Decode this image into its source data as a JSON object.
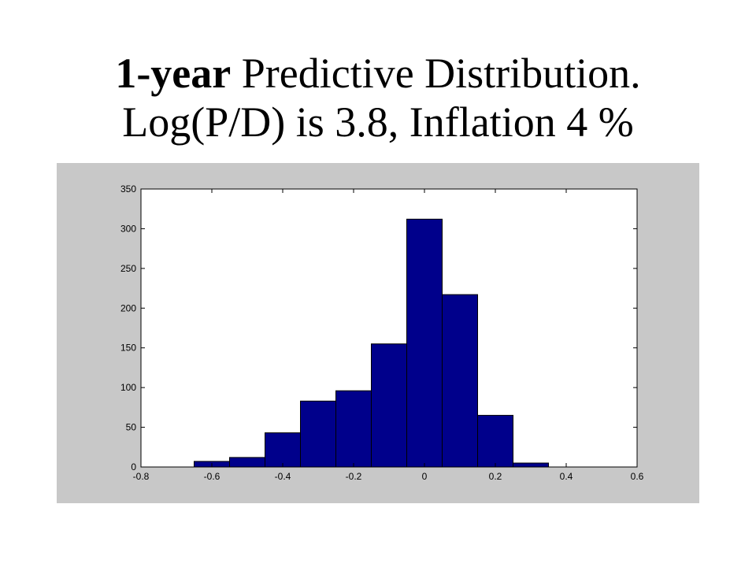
{
  "slide": {
    "title_bold": "1-year",
    "title_rest": " Predictive Distribution.",
    "title_line2": "Log(P/D) is 3.8, Inflation 4 %"
  },
  "colors": {
    "panel_background": "#c8c8c8",
    "plot_background": "#ffffff",
    "bar_fill": "#00008b",
    "bar_edge": "#000000"
  },
  "chart_data": {
    "type": "bar",
    "subtype": "histogram",
    "title": "",
    "xlabel": "",
    "ylabel": "",
    "xlim": [
      -0.8,
      0.6
    ],
    "ylim": [
      0,
      350
    ],
    "xticks": [
      -0.8,
      -0.6,
      -0.4,
      -0.2,
      0,
      0.2,
      0.4,
      0.6
    ],
    "xtick_labels": [
      "-0.8",
      "-0.6",
      "-0.4",
      "-0.2",
      "0",
      "0.2",
      "0.4",
      "0.6"
    ],
    "yticks": [
      0,
      50,
      100,
      150,
      200,
      250,
      300,
      350
    ],
    "ytick_labels": [
      "0",
      "50",
      "100",
      "150",
      "200",
      "250",
      "300",
      "350"
    ],
    "grid": false,
    "bins": [
      {
        "x0": -0.65,
        "x1": -0.55,
        "count": 7
      },
      {
        "x0": -0.55,
        "x1": -0.45,
        "count": 12
      },
      {
        "x0": -0.45,
        "x1": -0.35,
        "count": 43
      },
      {
        "x0": -0.35,
        "x1": -0.25,
        "count": 83
      },
      {
        "x0": -0.25,
        "x1": -0.15,
        "count": 96
      },
      {
        "x0": -0.15,
        "x1": -0.05,
        "count": 155
      },
      {
        "x0": -0.05,
        "x1": 0.05,
        "count": 312
      },
      {
        "x0": 0.05,
        "x1": 0.15,
        "count": 217
      },
      {
        "x0": 0.15,
        "x1": 0.25,
        "count": 65
      },
      {
        "x0": 0.25,
        "x1": 0.35,
        "count": 5
      }
    ]
  }
}
